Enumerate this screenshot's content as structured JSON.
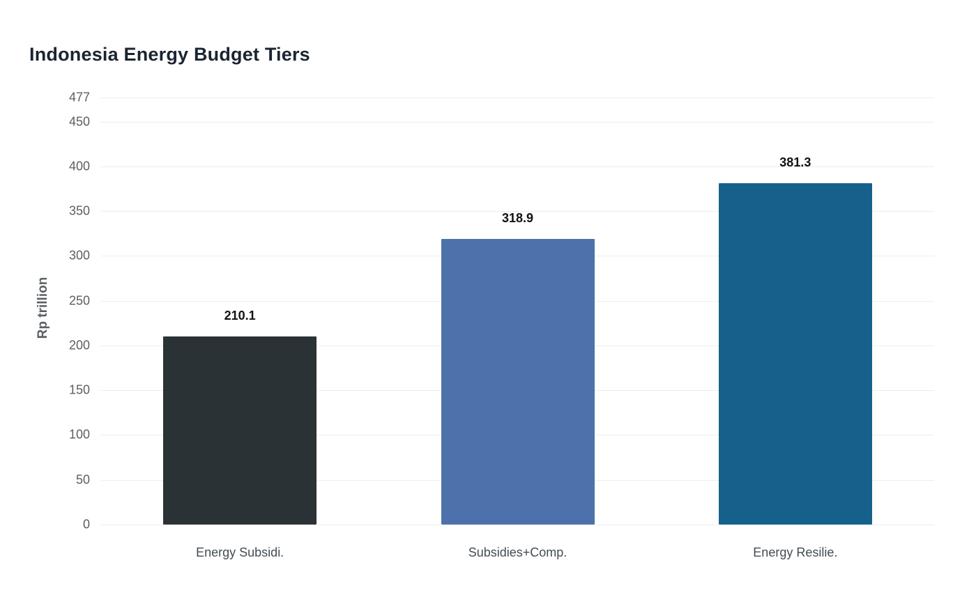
{
  "chart_data": {
    "type": "bar",
    "title": "Indonesia Energy Budget Tiers",
    "xlabel": "",
    "ylabel": "Rp trillion",
    "categories": [
      "Energy Subsidi.",
      "Subsidies+Comp.",
      "Energy Resilie."
    ],
    "values": [
      210.1,
      318.9,
      381.3
    ],
    "value_labels": [
      "210.1",
      "318.9",
      "381.3"
    ],
    "bar_colors": [
      "#2b3236",
      "#4d72ab",
      "#16618c"
    ],
    "yticks": [
      0,
      50,
      100,
      150,
      200,
      250,
      300,
      350,
      400,
      450,
      477
    ],
    "ylim": [
      0,
      477
    ],
    "grid": true,
    "legend_position": "none",
    "styles": {
      "background": "#ffffff",
      "title_color": "#1b2531",
      "axis_text_color": "#595f64",
      "category_text_color": "#434c52",
      "value_label_color": "#111111",
      "grid_color": "#ebedee"
    }
  }
}
